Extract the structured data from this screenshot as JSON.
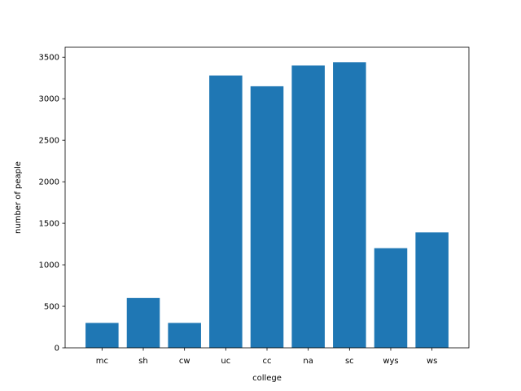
{
  "chart_data": {
    "type": "bar",
    "categories": [
      "mc",
      "sh",
      "cw",
      "uc",
      "cc",
      "na",
      "sc",
      "wys",
      "ws"
    ],
    "values": [
      300,
      600,
      300,
      3280,
      3150,
      3400,
      3440,
      1200,
      1390
    ],
    "title": "",
    "xlabel": "college",
    "ylabel": "number of peaple",
    "ylim": [
      0,
      3620
    ],
    "yticks": [
      0,
      500,
      1000,
      1500,
      2000,
      2500,
      3000,
      3500
    ],
    "bar_color": "#1f77b4",
    "grid": false,
    "legend": "none"
  }
}
